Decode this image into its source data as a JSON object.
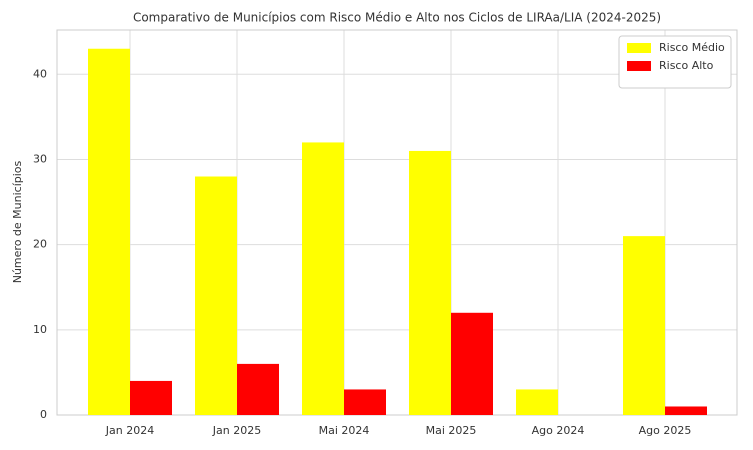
{
  "chart_data": {
    "type": "bar",
    "title": "Comparativo de Municípios com Risco Médio e Alto nos Ciclos de LIRAa/LIA (2024-2025)",
    "y_label": "Número de Municípios",
    "categories": [
      "Jan 2024",
      "Jan 2025",
      "Mai 2024",
      "Mai 2025",
      "Ago 2024",
      "Ago 2025"
    ],
    "series": [
      {
        "name": "Risco Médio",
        "color": "#ffff00",
        "values": [
          43,
          28,
          32,
          31,
          3,
          21
        ]
      },
      {
        "name": "Risco Alto",
        "color": "#ff0000",
        "values": [
          4,
          6,
          3,
          12,
          0,
          1
        ]
      }
    ],
    "ylim": [
      0,
      45.2
    ],
    "yticks": [
      0,
      10,
      20,
      30,
      40
    ],
    "grid": true,
    "legend": "upper right"
  }
}
